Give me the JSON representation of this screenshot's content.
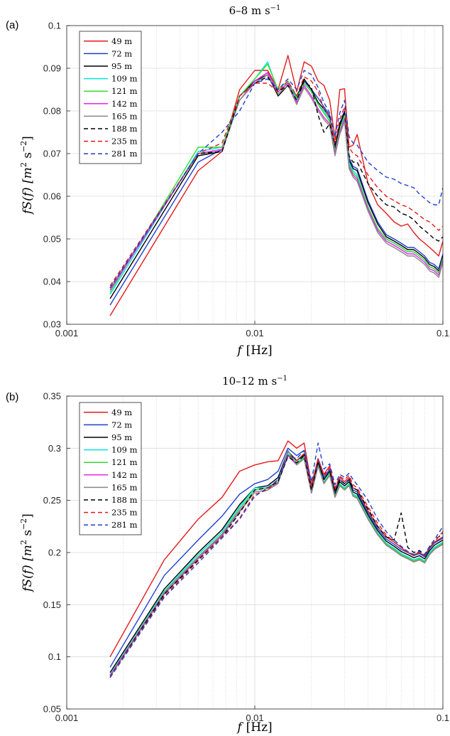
{
  "chart_data": [
    {
      "type": "line",
      "panel_label": "(a)",
      "title_main": "6–8 m s",
      "title_sup": "−1",
      "xlabel_var": "f",
      "xlabel_unit": "[Hz]",
      "ylabel_main": "fS(f)  [m",
      "ylabel_sup1": "2",
      "ylabel_mid": " s",
      "ylabel_sup2": "−2",
      "ylabel_end": "]",
      "xscale": "log",
      "xlim": [
        0.001,
        0.1
      ],
      "ylim": [
        0.03,
        0.1
      ],
      "xticks": [
        "0.001",
        "0.01",
        "0.1"
      ],
      "yticks": [
        "0.03",
        "0.04",
        "0.05",
        "0.06",
        "0.07",
        "0.08",
        "0.09",
        "0.1"
      ],
      "grid": true,
      "legend_position": "top-left",
      "x": [
        0.0017,
        0.005,
        0.0067,
        0.0083,
        0.01,
        0.0117,
        0.0133,
        0.015,
        0.0167,
        0.0183,
        0.02,
        0.0217,
        0.0233,
        0.025,
        0.0267,
        0.0283,
        0.03,
        0.0317,
        0.0333,
        0.035,
        0.04,
        0.045,
        0.05,
        0.055,
        0.06,
        0.065,
        0.07,
        0.075,
        0.08,
        0.085,
        0.09,
        0.095,
        0.1
      ],
      "series": [
        {
          "name": "49 m",
          "color": "#e41a1c",
          "dash": "",
          "values": [
            0.032,
            0.066,
            0.0705,
            0.085,
            0.0895,
            0.0895,
            0.085,
            0.093,
            0.0845,
            0.0915,
            0.0905,
            0.087,
            0.086,
            0.0825,
            0.0735,
            0.085,
            0.0852,
            0.0715,
            0.072,
            0.0745,
            0.063,
            0.058,
            0.056,
            0.054,
            0.053,
            0.0535,
            0.0515,
            0.05,
            0.049,
            0.048,
            0.047,
            0.046,
            0.0495
          ]
        },
        {
          "name": "72 m",
          "color": "#1f3fd0",
          "dash": "",
          "values": [
            0.0345,
            0.068,
            0.071,
            0.0835,
            0.087,
            0.089,
            0.0845,
            0.0865,
            0.0835,
            0.087,
            0.085,
            0.083,
            0.081,
            0.079,
            0.0715,
            0.077,
            0.08,
            0.069,
            0.067,
            0.0665,
            0.059,
            0.054,
            0.051,
            0.05,
            0.049,
            0.048,
            0.048,
            0.047,
            0.046,
            0.0445,
            0.044,
            0.043,
            0.0465
          ]
        },
        {
          "name": "95 m",
          "color": "#000000",
          "dash": "",
          "values": [
            0.036,
            0.0695,
            0.0705,
            0.0835,
            0.087,
            0.0885,
            0.0835,
            0.086,
            0.083,
            0.0875,
            0.085,
            0.082,
            0.0805,
            0.0785,
            0.071,
            0.0765,
            0.0795,
            0.0685,
            0.0665,
            0.066,
            0.0585,
            0.0535,
            0.0505,
            0.0495,
            0.0485,
            0.0475,
            0.0475,
            0.0465,
            0.0455,
            0.044,
            0.0435,
            0.0425,
            0.046
          ]
        },
        {
          "name": "109 m",
          "color": "#00e5e5",
          "dash": "",
          "values": [
            0.037,
            0.0705,
            0.0715,
            0.0835,
            0.0875,
            0.0915,
            0.0845,
            0.0865,
            0.0825,
            0.0865,
            0.0845,
            0.0815,
            0.08,
            0.078,
            0.0705,
            0.0755,
            0.079,
            0.068,
            0.066,
            0.065,
            0.0575,
            0.0525,
            0.05,
            0.049,
            0.048,
            0.047,
            0.047,
            0.046,
            0.045,
            0.0435,
            0.043,
            0.042,
            0.0455
          ]
        },
        {
          "name": "121 m",
          "color": "#33dd33",
          "dash": "",
          "values": [
            0.0375,
            0.0715,
            0.0715,
            0.0835,
            0.0875,
            0.091,
            0.085,
            0.087,
            0.083,
            0.0865,
            0.0845,
            0.0815,
            0.0795,
            0.0775,
            0.0705,
            0.0755,
            0.0785,
            0.0675,
            0.0655,
            0.0645,
            0.0575,
            0.0525,
            0.05,
            0.049,
            0.048,
            0.047,
            0.047,
            0.046,
            0.045,
            0.0435,
            0.043,
            0.042,
            0.0455
          ]
        },
        {
          "name": "142 m",
          "color": "#ee22ee",
          "dash": "",
          "values": [
            0.038,
            0.07,
            0.071,
            0.0825,
            0.087,
            0.089,
            0.0845,
            0.0865,
            0.082,
            0.086,
            0.0835,
            0.0805,
            0.0785,
            0.077,
            0.07,
            0.075,
            0.078,
            0.067,
            0.065,
            0.064,
            0.057,
            0.052,
            0.0495,
            0.0485,
            0.0475,
            0.0465,
            0.0465,
            0.0455,
            0.0445,
            0.043,
            0.0425,
            0.0415,
            0.045
          ]
        },
        {
          "name": "165 m",
          "color": "#888888",
          "dash": "",
          "values": [
            0.0385,
            0.07,
            0.0705,
            0.0825,
            0.0865,
            0.0885,
            0.084,
            0.086,
            0.0815,
            0.0855,
            0.083,
            0.08,
            0.078,
            0.0765,
            0.0695,
            0.0745,
            0.0775,
            0.0665,
            0.0645,
            0.0635,
            0.0565,
            0.0515,
            0.049,
            0.048,
            0.047,
            0.046,
            0.046,
            0.045,
            0.044,
            0.0425,
            0.042,
            0.041,
            0.0445
          ]
        },
        {
          "name": "188 m",
          "color": "#000000",
          "dash": "6,4",
          "values": [
            0.0385,
            0.07,
            0.0705,
            0.0835,
            0.0865,
            0.088,
            0.0845,
            0.086,
            0.0825,
            0.087,
            0.0855,
            0.079,
            0.075,
            0.077,
            0.072,
            0.077,
            0.08,
            0.0695,
            0.068,
            0.068,
            0.063,
            0.06,
            0.058,
            0.0575,
            0.056,
            0.0555,
            0.0545,
            0.053,
            0.052,
            0.051,
            0.05,
            0.0495,
            0.0505
          ]
        },
        {
          "name": "235 m",
          "color": "#e41a1c",
          "dash": "6,4",
          "values": [
            0.039,
            0.07,
            0.0725,
            0.0835,
            0.0865,
            0.0865,
            0.0845,
            0.087,
            0.0835,
            0.088,
            0.087,
            0.0845,
            0.0805,
            0.0785,
            0.0725,
            0.078,
            0.081,
            0.0715,
            0.07,
            0.0695,
            0.065,
            0.062,
            0.06,
            0.059,
            0.058,
            0.0575,
            0.0565,
            0.0555,
            0.0545,
            0.054,
            0.053,
            0.052,
            0.053
          ]
        },
        {
          "name": "281 m",
          "color": "#1f3fd0",
          "dash": "6,4",
          "values": [
            0.0385,
            0.07,
            0.075,
            0.08,
            0.0865,
            0.0875,
            0.085,
            0.0875,
            0.085,
            0.0895,
            0.0885,
            0.0855,
            0.082,
            0.0795,
            0.074,
            0.0795,
            0.0825,
            0.074,
            0.0725,
            0.072,
            0.068,
            0.066,
            0.0645,
            0.064,
            0.063,
            0.0625,
            0.062,
            0.0605,
            0.0595,
            0.0585,
            0.058,
            0.058,
            0.062
          ]
        }
      ]
    },
    {
      "type": "line",
      "panel_label": "(b)",
      "title_main": "10–12 m s",
      "title_sup": "−1",
      "xlabel_var": "f",
      "xlabel_unit": "[Hz]",
      "ylabel_main": "fS(f)  [m",
      "ylabel_sup1": "2",
      "ylabel_mid": " s",
      "ylabel_sup2": "−2",
      "ylabel_end": "]",
      "xscale": "log",
      "xlim": [
        0.001,
        0.1
      ],
      "ylim": [
        0.05,
        0.35
      ],
      "xticks": [
        "0.001",
        "0.01",
        "0.1"
      ],
      "yticks": [
        "0.05",
        "0.1",
        "0.15",
        "0.2",
        "0.25",
        "0.3",
        "0.35"
      ],
      "grid": true,
      "legend_position": "top-left",
      "x": [
        0.0017,
        0.0033,
        0.005,
        0.0067,
        0.0083,
        0.01,
        0.0117,
        0.0133,
        0.015,
        0.0167,
        0.0183,
        0.02,
        0.0217,
        0.0233,
        0.025,
        0.0267,
        0.0283,
        0.03,
        0.0317,
        0.0333,
        0.035,
        0.04,
        0.045,
        0.05,
        0.055,
        0.06,
        0.065,
        0.07,
        0.075,
        0.08,
        0.085,
        0.09,
        0.1
      ],
      "series": [
        {
          "name": "49 m",
          "color": "#e41a1c",
          "dash": "",
          "values": [
            0.1,
            0.193,
            0.232,
            0.253,
            0.278,
            0.284,
            0.287,
            0.288,
            0.307,
            0.3,
            0.305,
            0.265,
            0.29,
            0.275,
            0.283,
            0.26,
            0.272,
            0.268,
            0.272,
            0.262,
            0.26,
            0.24,
            0.225,
            0.215,
            0.21,
            0.205,
            0.2,
            0.198,
            0.2,
            0.197,
            0.205,
            0.21,
            0.215
          ]
        },
        {
          "name": "72 m",
          "color": "#1f3fd0",
          "dash": "",
          "values": [
            0.09,
            0.178,
            0.212,
            0.235,
            0.256,
            0.266,
            0.27,
            0.278,
            0.3,
            0.293,
            0.298,
            0.262,
            0.288,
            0.272,
            0.28,
            0.258,
            0.27,
            0.266,
            0.27,
            0.26,
            0.258,
            0.238,
            0.223,
            0.213,
            0.208,
            0.203,
            0.2,
            0.197,
            0.199,
            0.196,
            0.204,
            0.209,
            0.214
          ]
        },
        {
          "name": "95 m",
          "color": "#000000",
          "dash": "",
          "values": [
            0.085,
            0.165,
            0.2,
            0.222,
            0.246,
            0.262,
            0.264,
            0.272,
            0.297,
            0.288,
            0.294,
            0.26,
            0.286,
            0.27,
            0.278,
            0.256,
            0.268,
            0.264,
            0.268,
            0.258,
            0.256,
            0.236,
            0.221,
            0.211,
            0.206,
            0.201,
            0.198,
            0.195,
            0.197,
            0.194,
            0.202,
            0.207,
            0.212
          ]
        },
        {
          "name": "109 m",
          "color": "#00e5e5",
          "dash": "",
          "values": [
            0.083,
            0.163,
            0.198,
            0.22,
            0.244,
            0.262,
            0.262,
            0.27,
            0.295,
            0.286,
            0.292,
            0.258,
            0.284,
            0.268,
            0.276,
            0.254,
            0.266,
            0.262,
            0.266,
            0.256,
            0.254,
            0.234,
            0.219,
            0.209,
            0.204,
            0.199,
            0.196,
            0.193,
            0.195,
            0.192,
            0.2,
            0.205,
            0.21
          ]
        },
        {
          "name": "121 m",
          "color": "#33dd33",
          "dash": "",
          "values": [
            0.082,
            0.162,
            0.196,
            0.218,
            0.242,
            0.26,
            0.262,
            0.268,
            0.294,
            0.285,
            0.291,
            0.258,
            0.283,
            0.267,
            0.275,
            0.254,
            0.265,
            0.261,
            0.265,
            0.255,
            0.253,
            0.233,
            0.218,
            0.208,
            0.203,
            0.198,
            0.195,
            0.192,
            0.194,
            0.191,
            0.199,
            0.204,
            0.209
          ]
        },
        {
          "name": "142 m",
          "color": "#ee22ee",
          "dash": "",
          "values": [
            0.082,
            0.161,
            0.195,
            0.217,
            0.24,
            0.258,
            0.26,
            0.267,
            0.293,
            0.284,
            0.29,
            0.257,
            0.283,
            0.266,
            0.274,
            0.253,
            0.264,
            0.26,
            0.264,
            0.254,
            0.252,
            0.232,
            0.217,
            0.207,
            0.202,
            0.197,
            0.194,
            0.191,
            0.193,
            0.19,
            0.198,
            0.203,
            0.208
          ]
        },
        {
          "name": "165 m",
          "color": "#888888",
          "dash": "",
          "values": [
            0.081,
            0.16,
            0.194,
            0.216,
            0.239,
            0.258,
            0.26,
            0.266,
            0.298,
            0.284,
            0.29,
            0.257,
            0.283,
            0.266,
            0.274,
            0.253,
            0.264,
            0.26,
            0.264,
            0.254,
            0.252,
            0.232,
            0.217,
            0.207,
            0.202,
            0.197,
            0.194,
            0.191,
            0.193,
            0.19,
            0.198,
            0.203,
            0.208
          ]
        },
        {
          "name": "188 m",
          "color": "#000000",
          "dash": "6,4",
          "values": [
            0.081,
            0.16,
            0.193,
            0.215,
            0.238,
            0.26,
            0.262,
            0.268,
            0.292,
            0.286,
            0.293,
            0.26,
            0.287,
            0.27,
            0.278,
            0.258,
            0.27,
            0.266,
            0.27,
            0.262,
            0.26,
            0.242,
            0.225,
            0.215,
            0.212,
            0.238,
            0.205,
            0.2,
            0.202,
            0.198,
            0.206,
            0.212,
            0.218
          ]
        },
        {
          "name": "235 m",
          "color": "#e41a1c",
          "dash": "6,4",
          "values": [
            0.081,
            0.158,
            0.192,
            0.215,
            0.233,
            0.256,
            0.26,
            0.27,
            0.294,
            0.288,
            0.295,
            0.263,
            0.29,
            0.274,
            0.281,
            0.262,
            0.273,
            0.27,
            0.274,
            0.265,
            0.262,
            0.244,
            0.228,
            0.217,
            0.21,
            0.205,
            0.2,
            0.197,
            0.2,
            0.197,
            0.205,
            0.21,
            0.22
          ]
        },
        {
          "name": "281 m",
          "color": "#1f3fd0",
          "dash": "6,4",
          "values": [
            0.08,
            0.157,
            0.19,
            0.214,
            0.232,
            0.254,
            0.262,
            0.27,
            0.293,
            0.29,
            0.298,
            0.268,
            0.305,
            0.28,
            0.285,
            0.265,
            0.275,
            0.272,
            0.276,
            0.27,
            0.265,
            0.25,
            0.232,
            0.22,
            0.212,
            0.206,
            0.201,
            0.198,
            0.201,
            0.198,
            0.206,
            0.212,
            0.225
          ]
        }
      ]
    }
  ]
}
